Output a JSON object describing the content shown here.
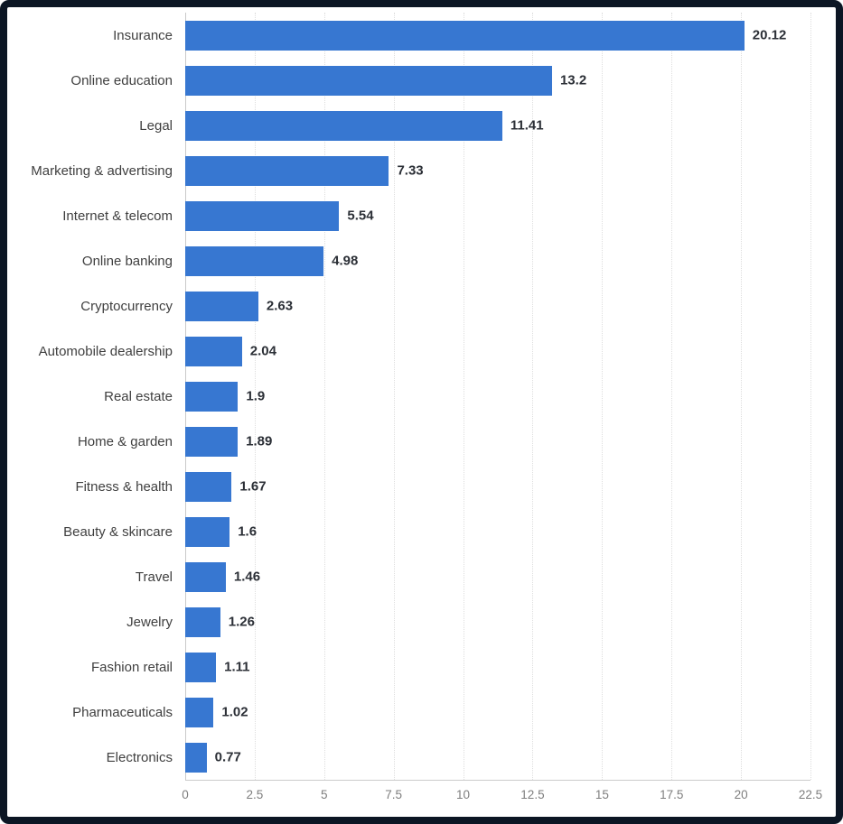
{
  "window": {
    "frame_color": "#0c1624",
    "background": "#ffffff"
  },
  "chart_data": {
    "type": "bar",
    "orientation": "horizontal",
    "title": "",
    "categories": [
      "Insurance",
      "Online education",
      "Legal",
      "Marketing & advertising",
      "Internet & telecom",
      "Online banking",
      "Cryptocurrency",
      "Automobile dealership",
      "Real estate",
      "Home & garden",
      "Fitness & health",
      "Beauty & skincare",
      "Travel",
      "Jewelry",
      "Fashion retail",
      "Pharmaceuticals",
      "Electronics"
    ],
    "values": [
      20.12,
      13.2,
      11.41,
      7.33,
      5.54,
      4.98,
      2.63,
      2.04,
      1.9,
      1.89,
      1.67,
      1.6,
      1.46,
      1.26,
      1.11,
      1.02,
      0.77
    ],
    "value_labels": [
      "20.12",
      "13.2",
      "11.41",
      "7.33",
      "5.54",
      "4.98",
      "2.63",
      "2.04",
      "1.9",
      "1.89",
      "1.67",
      "1.6",
      "1.46",
      "1.26",
      "1.11",
      "1.02",
      "0.77"
    ],
    "x_ticks": [
      "0",
      "2.5",
      "5",
      "7.5",
      "10",
      "12.5",
      "15",
      "17.5",
      "20",
      "22.5"
    ],
    "xlim": [
      0,
      22.5
    ],
    "xlabel": "",
    "ylabel": "",
    "bar_color": "#3777d1",
    "grid": "vertical-dotted",
    "legend": "none"
  }
}
